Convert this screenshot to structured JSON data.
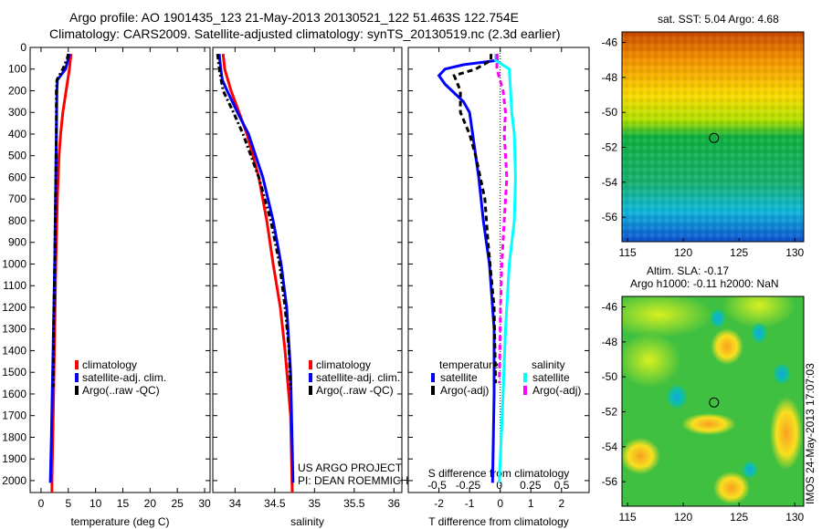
{
  "header": {
    "title_line1": "Argo profile: AO 1901435_123 21-May-2013 20130521_122 51.463S 122.754E",
    "title_line2": "Climatology: CARS2009. Satellite-adjusted climatology: synTS_20130519.nc (2.3d earlier)"
  },
  "credit": {
    "line1": "US ARGO PROJECT",
    "line2": "PI: DEAN ROEMMICH"
  },
  "imos_stamp": "IMOS 24-May-2013 17:07:03",
  "colors": {
    "climatology": "#ff0000",
    "satellite": "#0000ff",
    "argo": "#000000",
    "sal_satellite": "#00ffff",
    "sal_argo": "#ff00ff"
  },
  "chart_data": [
    {
      "type": "line",
      "title": "",
      "xlabel": "temperature (deg C)",
      "ylabel": "",
      "xlim": [
        -2,
        31
      ],
      "ylim": [
        2055,
        0
      ],
      "xticks": [
        "0",
        "5",
        "10",
        "15",
        "20",
        "25",
        "30"
      ],
      "yticks": [
        "0",
        "100",
        "200",
        "300",
        "400",
        "500",
        "600",
        "700",
        "800",
        "900",
        "1000",
        "1100",
        "1200",
        "1300",
        "1400",
        "1500",
        "1600",
        "1700",
        "1800",
        "1900",
        "2000"
      ],
      "legend": [
        "climatology",
        "satellite-adj. clim.",
        "Argo(..raw -QC)"
      ],
      "legend_placement": "center",
      "series": [
        {
          "name": "climatology",
          "color": "#ff0000",
          "dash": "",
          "depth": [
            30,
            50,
            100,
            200,
            300,
            400,
            500,
            700,
            1000,
            1300,
            1600,
            2000,
            2055
          ],
          "values": [
            5.5,
            5.4,
            5.2,
            4.6,
            4.0,
            3.6,
            3.3,
            3.0,
            2.7,
            2.5,
            2.3,
            2.0,
            2.0
          ]
        },
        {
          "name": "satellite-adj. clim.",
          "color": "#0000ff",
          "dash": "",
          "depth": [
            30,
            50,
            100,
            150,
            200,
            400,
            600,
            1000,
            1400,
            1800,
            2010
          ],
          "values": [
            5.2,
            5.0,
            4.5,
            3.0,
            2.9,
            2.8,
            2.7,
            2.5,
            2.2,
            1.9,
            1.7
          ]
        },
        {
          "name": "Argo(..raw -QC)",
          "color": "#000000",
          "dash": "6,3,2,3",
          "depth": [
            30,
            50,
            100,
            150,
            200,
            400,
            600,
            1000,
            1300,
            1570
          ],
          "values": [
            5.0,
            4.8,
            4.0,
            2.9,
            2.8,
            2.8,
            2.7,
            2.5,
            2.3,
            2.2
          ]
        }
      ]
    },
    {
      "type": "line",
      "xlabel": "salinity",
      "ylabel": "",
      "xlim": [
        33.72,
        36.1
      ],
      "ylim": [
        2055,
        0
      ],
      "xticks": [
        "34",
        "34.5",
        "35",
        "35.5",
        "36"
      ],
      "legend": [
        "climatology",
        "satellite-adj. clim.",
        "Argo(..raw -QC)"
      ],
      "legend_placement": "center-right",
      "series": [
        {
          "name": "climatology",
          "color": "#ff0000",
          "dash": "",
          "depth": [
            30,
            100,
            200,
            300,
            400,
            600,
            800,
            1000,
            1200,
            1400,
            1700,
            2055
          ],
          "values": [
            33.85,
            33.87,
            33.95,
            34.05,
            34.15,
            34.3,
            34.4,
            34.48,
            34.57,
            34.63,
            34.7,
            34.72
          ]
        },
        {
          "name": "satellite-adj. clim.",
          "color": "#0000ff",
          "dash": "",
          "depth": [
            30,
            100,
            150,
            200,
            300,
            400,
            600,
            800,
            1000,
            1200,
            1500,
            2010
          ],
          "values": [
            33.8,
            33.82,
            33.84,
            33.9,
            34.03,
            34.17,
            34.35,
            34.48,
            34.58,
            34.65,
            34.7,
            34.73
          ]
        },
        {
          "name": "Argo(..raw -QC)",
          "color": "#000000",
          "dash": "6,3,2,3",
          "depth": [
            30,
            100,
            200,
            300,
            400,
            600,
            800,
            1000,
            1200,
            1400,
            1580
          ],
          "values": [
            33.78,
            33.8,
            33.85,
            33.98,
            34.1,
            34.3,
            34.45,
            34.56,
            34.63,
            34.68,
            34.7
          ]
        }
      ]
    },
    {
      "type": "line",
      "xlabel": "T difference from climatology",
      "x2label": "S difference from climatology",
      "xlim": [
        -3,
        2.9
      ],
      "x2lim": [
        -0.73,
        0.72
      ],
      "ylim": [
        2055,
        0
      ],
      "xticks": [
        "-2",
        "-1",
        "0",
        "1",
        "2"
      ],
      "x2ticks": [
        "-0.5",
        "-0.25",
        "0",
        "0.25",
        "0.5"
      ],
      "legend_titles": [
        "temperature",
        "salinity"
      ],
      "legend": [
        "satellite",
        "Argo(-adj)",
        "satellite",
        "Argo(-adj)"
      ],
      "series": [
        {
          "name": "temperature satellite",
          "axis": "T",
          "color": "#0000ff",
          "dash": "",
          "depth": [
            30,
            60,
            80,
            100,
            130,
            170,
            250,
            300,
            400,
            500,
            600,
            800,
            1000,
            1300,
            1600,
            2010
          ],
          "values": [
            -0.1,
            -0.1,
            -1.2,
            -1.8,
            -2.0,
            -1.8,
            -1.2,
            -1.0,
            -0.9,
            -0.8,
            -0.7,
            -0.55,
            -0.35,
            -0.2,
            -0.2,
            -0.25
          ]
        },
        {
          "name": "temperature Argo(-adj)",
          "axis": "T",
          "color": "#000000",
          "dash": "6,4",
          "depth": [
            30,
            60,
            100,
            130,
            200,
            300,
            400,
            500,
            700,
            900,
            1200,
            1550
          ],
          "values": [
            -0.3,
            -0.3,
            -0.8,
            -1.5,
            -1.3,
            -1.3,
            -1.0,
            -0.8,
            -0.5,
            -0.4,
            -0.2,
            -0.15
          ]
        },
        {
          "name": "salinity satellite",
          "axis": "S",
          "color": "#00ffff",
          "dash": "",
          "depth": [
            30,
            60,
            100,
            200,
            300,
            400,
            600,
            800,
            1000,
            1300,
            1600,
            2010
          ],
          "values": [
            -0.03,
            -0.03,
            0.08,
            0.09,
            0.1,
            0.12,
            0.13,
            0.12,
            0.08,
            0.05,
            0.03,
            0.0
          ]
        },
        {
          "name": "salinity Argo(-adj)",
          "axis": "S",
          "color": "#ff00ff",
          "dash": "6,4",
          "depth": [
            30,
            60,
            100,
            200,
            300,
            400,
            600,
            800,
            1000,
            1200,
            1550
          ],
          "values": [
            -0.02,
            -0.02,
            -0.02,
            0.03,
            0.05,
            0.04,
            0.06,
            0.04,
            0.02,
            0.01,
            0.0
          ]
        }
      ]
    },
    {
      "type": "heatmap",
      "title": "sat. SST: 5.04 Argo: 4.68",
      "xlim": [
        114.5,
        130.8
      ],
      "ylim": [
        -57.4,
        -45.4
      ],
      "xticks": [
        "115",
        "120",
        "125",
        "130"
      ],
      "yticks": [
        "-46",
        "-48",
        "-50",
        "-52",
        "-54",
        "-56"
      ],
      "marker": {
        "lon": 122.754,
        "lat": -51.463
      }
    },
    {
      "type": "heatmap",
      "title": "Altim. SLA: -0.17",
      "subtitle": "Argo h1000: -0.11 h2000: NaN",
      "xlim": [
        114.5,
        130.8
      ],
      "ylim": [
        -57.4,
        -45.4
      ],
      "xticks": [
        "115",
        "120",
        "125",
        "130"
      ],
      "yticks": [
        "-46",
        "-48",
        "-50",
        "-52",
        "-54",
        "-56"
      ],
      "marker": {
        "lon": 122.754,
        "lat": -51.463
      }
    }
  ]
}
